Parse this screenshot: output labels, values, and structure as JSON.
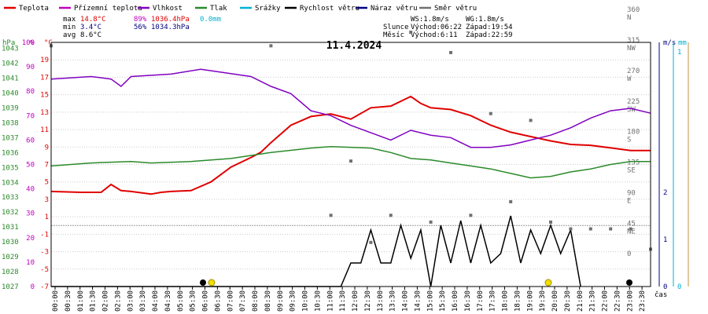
{
  "legend": [
    {
      "label": "Teplota",
      "color": "#e00000"
    },
    {
      "label": "Přízemní teplota",
      "color": "#c000c0"
    },
    {
      "label": "Vlhkost",
      "color": "#8000c0"
    },
    {
      "label": "Tlak",
      "color": "#2a8a2a"
    },
    {
      "label": "Srážky",
      "color": "#00b0d0"
    },
    {
      "label": "Rychlost větru",
      "color": "#000000"
    },
    {
      "label": "Náraz větru",
      "color": "#000080"
    },
    {
      "label": "Směr větru",
      "color": "#707070"
    }
  ],
  "stats": {
    "max": {
      "label": "max",
      "temp": "14.8°C",
      "hum": "89%",
      "press": "1036.4hPa",
      "rain": "0.0mm"
    },
    "min": {
      "label": "min",
      "temp": "3.4°C",
      "hum": "56%",
      "press": "1034.3hPa"
    },
    "avg": {
      "label": "avg",
      "temp": "8.6°C"
    }
  },
  "wind_info": {
    "ws": "WS:1.8m/s",
    "wg": "WG:1.8m/s"
  },
  "sun": {
    "label": "Slunce",
    "rise": "Východ:06:22",
    "set": "Západ:19:54"
  },
  "moon": {
    "label": "Měsíc",
    "rise": "Východ:6:11",
    "set": "Západ:22:59"
  },
  "colors": {
    "temp_axis": "#e00000",
    "hum_axis": "#c000c0",
    "press_axis": "#2a8a2a",
    "dir_axis": "#707070",
    "wind_axis": "#000080",
    "rain_axis": "#00b0d0"
  },
  "chart_data": {
    "type": "line",
    "title": "11.4.2024",
    "xlabel": "čas",
    "x_tick_labels": [
      "00:00",
      "00:30",
      "01:00",
      "01:30",
      "02:00",
      "02:30",
      "03:00",
      "03:30",
      "04:00",
      "04:30",
      "05:00",
      "05:30",
      "06:00",
      "06:30",
      "07:00",
      "07:30",
      "08:00",
      "08:30",
      "09:00",
      "09:30",
      "10:00",
      "10:30",
      "11:00",
      "11:30",
      "12:00",
      "12:30",
      "13:00",
      "13:30",
      "14:00",
      "14:30",
      "15:00",
      "15:30",
      "16:00",
      "16:30",
      "17:00",
      "17:30",
      "18:00",
      "18:30",
      "19:00",
      "19:30",
      "20:00",
      "20:30",
      "21:00",
      "21:30",
      "22:00",
      "22:30",
      "23:00",
      "23:30"
    ],
    "axes": {
      "pressure": {
        "unit": "hPa",
        "range": [
          1027,
          1043.4
        ],
        "ticks": [
          "1043",
          "1042",
          "1041",
          "1040",
          "1039",
          "1038",
          "1037",
          "1036",
          "1035",
          "1034",
          "1033",
          "1032",
          "1031",
          "1030",
          "1029",
          "1028",
          "1027"
        ]
      },
      "humidity": {
        "unit": "%",
        "range": [
          0,
          100
        ],
        "ticks": [
          "100",
          "90",
          "80",
          "70",
          "60",
          "50",
          "40",
          "30",
          "20",
          "10",
          "0"
        ]
      },
      "temperature": {
        "unit": "°C",
        "range": [
          -7,
          21
        ],
        "ticks": [
          "19",
          "17",
          "15",
          "13",
          "11",
          "9",
          "7",
          "5",
          "3",
          "1",
          "-1",
          "-3",
          "-5",
          "-7"
        ]
      },
      "wind_dir": {
        "unit": "",
        "ticks": [
          {
            "deg": "360",
            "dir": "N"
          },
          {
            "deg": "315",
            "dir": "NW"
          },
          {
            "deg": "270",
            "dir": "W"
          },
          {
            "deg": "225",
            "dir": "SW"
          },
          {
            "deg": "180",
            "dir": "S"
          },
          {
            "deg": "135",
            "dir": "SE"
          },
          {
            "deg": "90",
            "dir": "E"
          },
          {
            "deg": "45",
            "dir": "NE"
          },
          {
            "deg": "0",
            "dir": ""
          }
        ]
      },
      "wind_speed": {
        "unit": "m/s",
        "ticks": [
          "2",
          "1",
          "0"
        ]
      },
      "rain": {
        "unit": "mm",
        "ticks": [
          "1",
          "0"
        ]
      }
    },
    "series": [
      {
        "name": "Teplota",
        "color": "#e00000",
        "values": [
          [
            0,
            3.9
          ],
          [
            1.5,
            3.8
          ],
          [
            2.5,
            3.8
          ],
          [
            3,
            4.7
          ],
          [
            3.5,
            4
          ],
          [
            4,
            3.9
          ],
          [
            5,
            3.6
          ],
          [
            5.5,
            3.8
          ],
          [
            6,
            3.9
          ],
          [
            7,
            4
          ],
          [
            8,
            5
          ],
          [
            9,
            6.7
          ],
          [
            10,
            7.8
          ],
          [
            10.5,
            8.4
          ],
          [
            11,
            9.5
          ],
          [
            11.5,
            10.5
          ],
          [
            12,
            11.5
          ],
          [
            13,
            12.5
          ],
          [
            14,
            12.8
          ],
          [
            15,
            12.2
          ],
          [
            16,
            13.5
          ],
          [
            17,
            13.7
          ],
          [
            18,
            14.8
          ],
          [
            18.5,
            14
          ],
          [
            19,
            13.5
          ],
          [
            20,
            13.3
          ],
          [
            21,
            12.6
          ],
          [
            22,
            11.5
          ],
          [
            23,
            10.7
          ],
          [
            24,
            10.2
          ],
          [
            25,
            9.7
          ],
          [
            26,
            9.3
          ],
          [
            27,
            9.2
          ],
          [
            28,
            8.9
          ],
          [
            29,
            8.6
          ],
          [
            30,
            8.6
          ]
        ]
      },
      {
        "name": "Vlhkost",
        "color": "#8000c0",
        "values": [
          [
            0,
            85
          ],
          [
            2,
            86
          ],
          [
            3,
            85
          ],
          [
            3.5,
            82
          ],
          [
            4,
            86
          ],
          [
            6,
            87
          ],
          [
            7.5,
            89
          ],
          [
            10,
            86
          ],
          [
            11,
            82
          ],
          [
            12,
            79
          ],
          [
            13,
            72
          ],
          [
            14,
            70
          ],
          [
            15,
            66
          ],
          [
            16,
            63
          ],
          [
            17,
            60
          ],
          [
            18,
            64
          ],
          [
            19,
            62
          ],
          [
            20,
            61
          ],
          [
            21,
            57
          ],
          [
            22,
            57
          ],
          [
            23,
            58
          ],
          [
            24,
            60
          ],
          [
            25,
            62
          ],
          [
            26,
            65
          ],
          [
            27,
            69
          ],
          [
            28,
            72
          ],
          [
            29,
            73
          ],
          [
            30,
            71
          ]
        ]
      },
      {
        "name": "Tlak",
        "color": "#2a8a2a",
        "values": [
          [
            0,
            1035.1
          ],
          [
            2,
            1035.3
          ],
          [
            4,
            1035.4
          ],
          [
            5,
            1035.3
          ],
          [
            7,
            1035.4
          ],
          [
            9,
            1035.6
          ],
          [
            11,
            1036
          ],
          [
            13,
            1036.3
          ],
          [
            14,
            1036.4
          ],
          [
            16,
            1036.3
          ],
          [
            17,
            1036
          ],
          [
            18,
            1035.6
          ],
          [
            19,
            1035.5
          ],
          [
            20,
            1035.3
          ],
          [
            21,
            1035.1
          ],
          [
            22,
            1034.9
          ],
          [
            23,
            1034.6
          ],
          [
            24,
            1034.3
          ],
          [
            25,
            1034.4
          ],
          [
            26,
            1034.7
          ],
          [
            27,
            1034.9
          ],
          [
            28,
            1035.2
          ],
          [
            29,
            1035.4
          ],
          [
            30,
            1035.4
          ]
        ]
      },
      {
        "name": "Srážky",
        "color": "#00b0d0",
        "values": []
      },
      {
        "name": "Rychlost větru",
        "color": "#000000",
        "values": [
          [
            0,
            0
          ],
          [
            14.5,
            0
          ],
          [
            15,
            0.5
          ],
          [
            15.5,
            0.5
          ],
          [
            16,
            1.2
          ],
          [
            16.5,
            0.5
          ],
          [
            17,
            0.5
          ],
          [
            17.5,
            1.3
          ],
          [
            18,
            0.6
          ],
          [
            18.5,
            1.2
          ],
          [
            19,
            0
          ],
          [
            19.5,
            1.3
          ],
          [
            20,
            0.5
          ],
          [
            20.5,
            1.4
          ],
          [
            21,
            0.5
          ],
          [
            21.5,
            1.3
          ],
          [
            22,
            0.5
          ],
          [
            22.5,
            0.7
          ],
          [
            23,
            1.5
          ],
          [
            23.5,
            0.5
          ],
          [
            24,
            1.2
          ],
          [
            24.5,
            0.7
          ],
          [
            25,
            1.3
          ],
          [
            25.5,
            0.7
          ],
          [
            26,
            1.2
          ],
          [
            26.5,
            0
          ]
        ]
      },
      {
        "name": "Směr větru",
        "color": "#707070",
        "values": [
          [
            0,
            310
          ],
          [
            11,
            310
          ],
          [
            14,
            60
          ],
          [
            15,
            140
          ],
          [
            16,
            20
          ],
          [
            17,
            60
          ],
          [
            18,
            330
          ],
          [
            19,
            50
          ],
          [
            20,
            300
          ],
          [
            21,
            60
          ],
          [
            22,
            210
          ],
          [
            23,
            80
          ],
          [
            24,
            200
          ],
          [
            25,
            50
          ],
          [
            26,
            40
          ],
          [
            27,
            40
          ],
          [
            28,
            40
          ],
          [
            29,
            40
          ],
          [
            30,
            10
          ]
        ]
      }
    ]
  }
}
